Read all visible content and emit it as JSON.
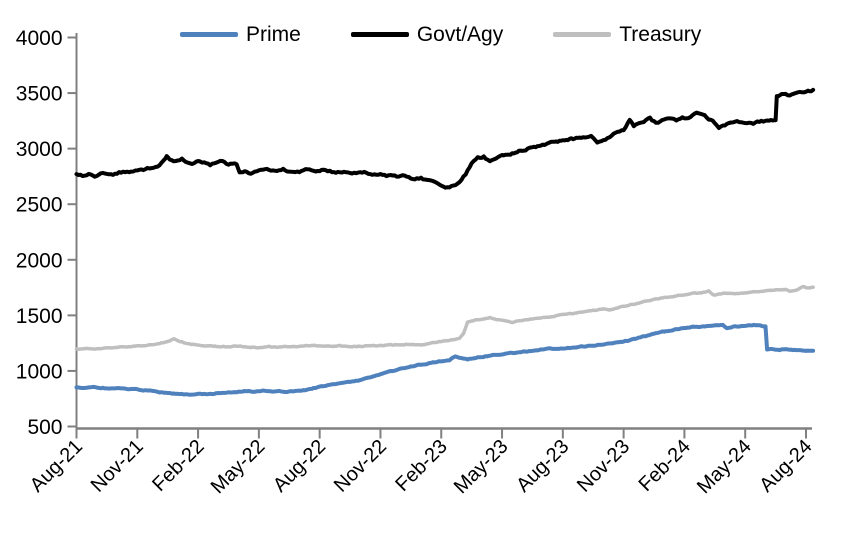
{
  "chart_data": {
    "type": "line",
    "title": "",
    "x_axis": {
      "unit": "months since Aug-2021 (fractional index)",
      "tick_labels": [
        "Aug-21",
        "Nov-21",
        "Feb-22",
        "May-22",
        "Aug-22",
        "Nov-22",
        "Feb-23",
        "May-23",
        "Aug-23",
        "Nov-23",
        "Feb-24",
        "May-24",
        "Aug-24"
      ],
      "tick_indices": [
        0,
        3,
        6,
        9,
        12,
        15,
        18,
        21,
        24,
        27,
        30,
        33,
        36
      ],
      "range": [
        0,
        36.4
      ]
    },
    "y_axis": {
      "tick_labels": [
        "4000",
        "3500",
        "3000",
        "2500",
        "2000",
        "1500",
        "1000",
        "500"
      ],
      "tick_values": [
        4000,
        3500,
        3000,
        2500,
        2000,
        1500,
        1000,
        500
      ],
      "min": 500,
      "max": 4000,
      "grid": false
    },
    "legend_position": "top",
    "axis_color": "#808080",
    "label_color": "#000000",
    "series": [
      {
        "name": "Prime",
        "color": "#4f81bd",
        "stroke_width": 4,
        "points": [
          [
            0,
            852
          ],
          [
            0.4,
            846
          ],
          [
            0.8,
            854
          ],
          [
            1.2,
            847
          ],
          [
            1.6,
            843
          ],
          [
            2,
            846
          ],
          [
            2.4,
            840
          ],
          [
            2.8,
            836
          ],
          [
            3.2,
            830
          ],
          [
            3.6,
            822
          ],
          [
            4,
            812
          ],
          [
            4.4,
            802
          ],
          [
            4.8,
            795
          ],
          [
            5.2,
            791
          ],
          [
            5.6,
            789
          ],
          [
            6,
            794
          ],
          [
            6.4,
            791
          ],
          [
            6.8,
            796
          ],
          [
            7.2,
            803
          ],
          [
            7.6,
            808
          ],
          [
            8,
            813
          ],
          [
            8.4,
            818
          ],
          [
            8.8,
            812
          ],
          [
            9.2,
            820
          ],
          [
            9.6,
            814
          ],
          [
            10,
            818
          ],
          [
            10.4,
            814
          ],
          [
            10.8,
            820
          ],
          [
            11.2,
            826
          ],
          [
            11.6,
            838
          ],
          [
            12,
            856
          ],
          [
            12.4,
            870
          ],
          [
            12.8,
            884
          ],
          [
            13.2,
            894
          ],
          [
            13.6,
            905
          ],
          [
            14,
            918
          ],
          [
            14.4,
            938
          ],
          [
            14.8,
            958
          ],
          [
            15.2,
            980
          ],
          [
            15.6,
            1000
          ],
          [
            16,
            1018
          ],
          [
            16.4,
            1036
          ],
          [
            16.8,
            1052
          ],
          [
            17.2,
            1064
          ],
          [
            17.6,
            1075
          ],
          [
            18,
            1088
          ],
          [
            18.4,
            1098
          ],
          [
            18.7,
            1132
          ],
          [
            19,
            1118
          ],
          [
            19.3,
            1104
          ],
          [
            19.6,
            1115
          ],
          [
            20,
            1127
          ],
          [
            20.5,
            1140
          ],
          [
            21,
            1150
          ],
          [
            21.5,
            1162
          ],
          [
            22,
            1172
          ],
          [
            22.5,
            1182
          ],
          [
            23,
            1192
          ],
          [
            23.3,
            1200
          ],
          [
            23.6,
            1194
          ],
          [
            24,
            1202
          ],
          [
            24.5,
            1210
          ],
          [
            25,
            1220
          ],
          [
            25.5,
            1230
          ],
          [
            26,
            1240
          ],
          [
            26.5,
            1252
          ],
          [
            27,
            1264
          ],
          [
            27.5,
            1286
          ],
          [
            28,
            1310
          ],
          [
            28.5,
            1336
          ],
          [
            29,
            1355
          ],
          [
            29.5,
            1372
          ],
          [
            30,
            1386
          ],
          [
            30.5,
            1396
          ],
          [
            31,
            1402
          ],
          [
            31.4,
            1410
          ],
          [
            31.9,
            1415
          ],
          [
            32.1,
            1386
          ],
          [
            32.4,
            1398
          ],
          [
            33,
            1408
          ],
          [
            33.5,
            1413
          ],
          [
            34,
            1400
          ],
          [
            34.08,
            1190
          ],
          [
            34.3,
            1198
          ],
          [
            34.7,
            1192
          ],
          [
            35,
            1196
          ],
          [
            35.5,
            1186
          ],
          [
            36,
            1180
          ],
          [
            36.35,
            1178
          ]
        ]
      },
      {
        "name": "Govt/Agy",
        "color": "#000000",
        "stroke_width": 4,
        "points": [
          [
            0,
            2778
          ],
          [
            0.3,
            2760
          ],
          [
            0.6,
            2775
          ],
          [
            0.9,
            2756
          ],
          [
            1.2,
            2772
          ],
          [
            1.5,
            2780
          ],
          [
            1.8,
            2766
          ],
          [
            2.1,
            2784
          ],
          [
            2.4,
            2794
          ],
          [
            2.7,
            2786
          ],
          [
            3,
            2804
          ],
          [
            3.3,
            2812
          ],
          [
            3.6,
            2826
          ],
          [
            3.9,
            2836
          ],
          [
            4.1,
            2856
          ],
          [
            4.3,
            2892
          ],
          [
            4.45,
            2935
          ],
          [
            4.6,
            2905
          ],
          [
            4.8,
            2882
          ],
          [
            5,
            2898
          ],
          [
            5.2,
            2912
          ],
          [
            5.4,
            2880
          ],
          [
            5.7,
            2868
          ],
          [
            6,
            2890
          ],
          [
            6.3,
            2874
          ],
          [
            6.6,
            2852
          ],
          [
            6.9,
            2872
          ],
          [
            7.2,
            2886
          ],
          [
            7.5,
            2860
          ],
          [
            7.9,
            2866
          ],
          [
            8.05,
            2786
          ],
          [
            8.3,
            2792
          ],
          [
            8.6,
            2778
          ],
          [
            9,
            2806
          ],
          [
            9.4,
            2816
          ],
          [
            9.8,
            2800
          ],
          [
            10.2,
            2812
          ],
          [
            10.6,
            2795
          ],
          [
            11,
            2796
          ],
          [
            11.4,
            2815
          ],
          [
            11.8,
            2798
          ],
          [
            12.2,
            2806
          ],
          [
            12.6,
            2792
          ],
          [
            13,
            2788
          ],
          [
            13.4,
            2796
          ],
          [
            13.8,
            2782
          ],
          [
            14.2,
            2790
          ],
          [
            14.6,
            2772
          ],
          [
            15,
            2766
          ],
          [
            15.4,
            2756
          ],
          [
            15.8,
            2746
          ],
          [
            16.2,
            2756
          ],
          [
            16.6,
            2726
          ],
          [
            17,
            2732
          ],
          [
            17.4,
            2710
          ],
          [
            17.8,
            2694
          ],
          [
            18.2,
            2652
          ],
          [
            18.6,
            2665
          ],
          [
            18.9,
            2698
          ],
          [
            19.2,
            2772
          ],
          [
            19.5,
            2868
          ],
          [
            19.8,
            2916
          ],
          [
            20.1,
            2930
          ],
          [
            20.4,
            2882
          ],
          [
            20.7,
            2916
          ],
          [
            21,
            2940
          ],
          [
            21.5,
            2956
          ],
          [
            22,
            2986
          ],
          [
            22.5,
            3006
          ],
          [
            23,
            3030
          ],
          [
            23.5,
            3052
          ],
          [
            24,
            3076
          ],
          [
            24.5,
            3088
          ],
          [
            25,
            3100
          ],
          [
            25.4,
            3110
          ],
          [
            25.7,
            3052
          ],
          [
            26,
            3072
          ],
          [
            26.3,
            3105
          ],
          [
            26.6,
            3140
          ],
          [
            27,
            3170
          ],
          [
            27.3,
            3255
          ],
          [
            27.5,
            3200
          ],
          [
            27.8,
            3232
          ],
          [
            28,
            3246
          ],
          [
            28.3,
            3270
          ],
          [
            28.6,
            3230
          ],
          [
            29,
            3256
          ],
          [
            29.3,
            3270
          ],
          [
            29.6,
            3250
          ],
          [
            29.9,
            3276
          ],
          [
            30.2,
            3270
          ],
          [
            30.6,
            3320
          ],
          [
            31,
            3290
          ],
          [
            31.4,
            3245
          ],
          [
            31.7,
            3190
          ],
          [
            32,
            3215
          ],
          [
            32.3,
            3232
          ],
          [
            32.6,
            3246
          ],
          [
            33,
            3240
          ],
          [
            33.4,
            3228
          ],
          [
            33.8,
            3246
          ],
          [
            34.1,
            3250
          ],
          [
            34.35,
            3258
          ],
          [
            34.5,
            3262
          ],
          [
            34.56,
            3475
          ],
          [
            34.8,
            3490
          ],
          [
            35.1,
            3480
          ],
          [
            35.4,
            3496
          ],
          [
            35.8,
            3508
          ],
          [
            36.1,
            3516
          ],
          [
            36.35,
            3528
          ]
        ]
      },
      {
        "name": "Treasury",
        "color": "#bfbfbf",
        "stroke_width": 3.5,
        "points": [
          [
            0,
            1196
          ],
          [
            0.4,
            1200
          ],
          [
            0.8,
            1197
          ],
          [
            1.2,
            1204
          ],
          [
            1.6,
            1208
          ],
          [
            2,
            1212
          ],
          [
            2.4,
            1216
          ],
          [
            2.8,
            1222
          ],
          [
            3.2,
            1228
          ],
          [
            3.6,
            1236
          ],
          [
            4,
            1244
          ],
          [
            4.4,
            1258
          ],
          [
            4.8,
            1288
          ],
          [
            5.1,
            1268
          ],
          [
            5.5,
            1242
          ],
          [
            6,
            1230
          ],
          [
            6.5,
            1224
          ],
          [
            7,
            1221
          ],
          [
            7.5,
            1217
          ],
          [
            8,
            1222
          ],
          [
            8.5,
            1214
          ],
          [
            9,
            1210
          ],
          [
            9.5,
            1217
          ],
          [
            10,
            1214
          ],
          [
            10.5,
            1220
          ],
          [
            11,
            1222
          ],
          [
            11.5,
            1226
          ],
          [
            12,
            1228
          ],
          [
            12.5,
            1221
          ],
          [
            13,
            1225
          ],
          [
            13.5,
            1217
          ],
          [
            14,
            1222
          ],
          [
            14.5,
            1226
          ],
          [
            15,
            1229
          ],
          [
            15.5,
            1233
          ],
          [
            16,
            1236
          ],
          [
            16.5,
            1241
          ],
          [
            17,
            1236
          ],
          [
            17.5,
            1250
          ],
          [
            18,
            1266
          ],
          [
            18.5,
            1280
          ],
          [
            18.9,
            1292
          ],
          [
            19.1,
            1340
          ],
          [
            19.3,
            1436
          ],
          [
            19.6,
            1452
          ],
          [
            20,
            1468
          ],
          [
            20.4,
            1478
          ],
          [
            20.8,
            1462
          ],
          [
            21.2,
            1448
          ],
          [
            21.5,
            1438
          ],
          [
            21.8,
            1452
          ],
          [
            22.2,
            1462
          ],
          [
            22.6,
            1470
          ],
          [
            23,
            1478
          ],
          [
            23.5,
            1490
          ],
          [
            24,
            1505
          ],
          [
            24.5,
            1518
          ],
          [
            25,
            1532
          ],
          [
            25.5,
            1545
          ],
          [
            26,
            1558
          ],
          [
            26.3,
            1550
          ],
          [
            26.6,
            1564
          ],
          [
            27,
            1582
          ],
          [
            27.5,
            1602
          ],
          [
            28,
            1624
          ],
          [
            28.5,
            1644
          ],
          [
            29,
            1660
          ],
          [
            29.5,
            1673
          ],
          [
            30,
            1688
          ],
          [
            30.5,
            1698
          ],
          [
            31,
            1708
          ],
          [
            31.2,
            1722
          ],
          [
            31.45,
            1682
          ],
          [
            31.8,
            1692
          ],
          [
            32,
            1698
          ],
          [
            32.5,
            1694
          ],
          [
            33,
            1703
          ],
          [
            33.5,
            1712
          ],
          [
            34,
            1720
          ],
          [
            34.5,
            1728
          ],
          [
            35,
            1733
          ],
          [
            35.2,
            1716
          ],
          [
            35.55,
            1732
          ],
          [
            35.85,
            1758
          ],
          [
            36.1,
            1746
          ],
          [
            36.35,
            1752
          ]
        ]
      }
    ]
  }
}
